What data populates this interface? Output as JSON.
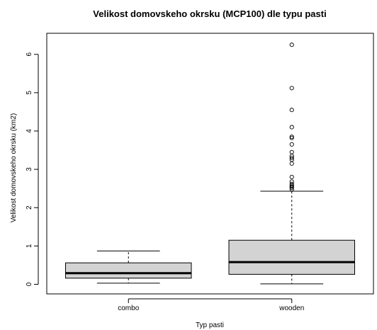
{
  "chart_data": {
    "type": "boxplot",
    "title": "Velikost domovskeho okrsku (MCP100) dle typu pasti",
    "xlabel": "Typ pasti",
    "ylabel": "Velikost domovskeho okrsku (km2)",
    "ylim": [
      -0.25,
      6.55
    ],
    "yticks": [
      0,
      1,
      2,
      3,
      4,
      5,
      6
    ],
    "categories": [
      "combo",
      "wooden"
    ],
    "boxes": [
      {
        "category": "combo",
        "whisker_low": 0.03,
        "q1": 0.16,
        "median": 0.29,
        "q3": 0.56,
        "whisker_high": 0.87,
        "outliers": []
      },
      {
        "category": "wooden",
        "whisker_low": 0.01,
        "q1": 0.26,
        "median": 0.58,
        "q3": 1.15,
        "whisker_high": 2.43,
        "outliers": [
          2.48,
          2.52,
          2.55,
          2.58,
          2.62,
          2.68,
          2.8,
          3.15,
          3.25,
          3.3,
          3.35,
          3.45,
          3.65,
          3.82,
          3.85,
          4.1,
          4.55,
          5.12,
          6.25
        ]
      }
    ],
    "box_fill": "#d3d3d3",
    "line_color": "#000000"
  }
}
